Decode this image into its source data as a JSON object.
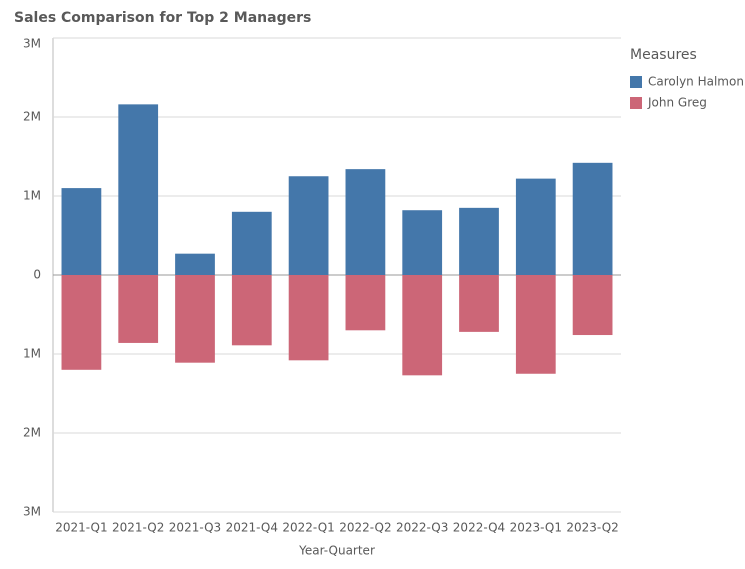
{
  "chart_data": {
    "type": "bar",
    "stacked": true,
    "title": "Sales Comparison for Top 2 Managers",
    "x_label": "Year-Quarter",
    "legend_title": "Measures",
    "legend": "right",
    "grid": true,
    "categories": [
      "2021-Q1",
      "2021-Q2",
      "2021-Q3",
      "2021-Q4",
      "2022-Q1",
      "2022-Q2",
      "2022-Q3",
      "2022-Q4",
      "2023-Q1",
      "2023-Q2"
    ],
    "series": [
      {
        "name": "Carolyn Halmon",
        "color": "#4477aa",
        "values": [
          1100000,
          2160000,
          270000,
          800000,
          1250000,
          1340000,
          820000,
          850000,
          1220000,
          1420000
        ]
      },
      {
        "name": "John Greg",
        "color": "#cc6677",
        "values": [
          -1200000,
          -860000,
          -1110000,
          -890000,
          -1080000,
          -700000,
          -1270000,
          -720000,
          -1250000,
          -760000
        ]
      }
    ],
    "ylim": [
      -3000000,
      3000000
    ],
    "yticks": [
      {
        "value": -3000000,
        "label": "3M"
      },
      {
        "value": -2000000,
        "label": "2M"
      },
      {
        "value": -1000000,
        "label": "1M"
      },
      0,
      {
        "value": 1000000,
        "label": "1M"
      },
      {
        "value": 2000000,
        "label": "2M"
      },
      {
        "value": 3000000,
        "label": "3M"
      }
    ]
  }
}
